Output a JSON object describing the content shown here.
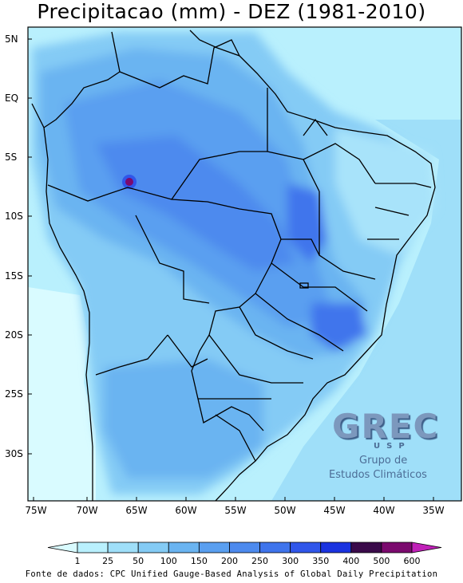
{
  "title": "Precipitacao (mm) - DEZ (1981-2010)",
  "lat_labels": [
    "5N",
    "EQ",
    "5S",
    "10S",
    "15S",
    "20S",
    "25S",
    "30S"
  ],
  "lon_labels": [
    "75W",
    "70W",
    "65W",
    "60W",
    "55W",
    "50W",
    "45W",
    "40W",
    "35W"
  ],
  "colorbar": {
    "labels": [
      "1",
      "25",
      "50",
      "100",
      "150",
      "200",
      "250",
      "300",
      "350",
      "400",
      "500",
      "600"
    ],
    "colors": [
      "#d9fbff",
      "#b9f0fd",
      "#9fdff9",
      "#84cbf5",
      "#6ab4f1",
      "#5a9ff0",
      "#4d8aee",
      "#3f74ec",
      "#3056ea",
      "#1a33e0",
      "#3a0a4a",
      "#7b0a6e",
      "#c020b8"
    ]
  },
  "source": "Fonte de dados: CPC Unified Gauge-Based Analysis of Global Daily Precipitation",
  "logo": {
    "letters": "GREC",
    "sub": "USP",
    "line1": "Grupo de",
    "line2": "Estudos Climáticos"
  }
}
